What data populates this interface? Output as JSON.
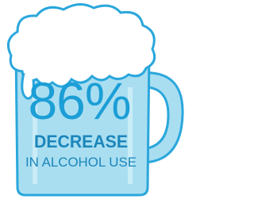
{
  "stat": {
    "value": "86%",
    "label": "DECREASE",
    "sublabel": "IN ALCOHOL USE"
  }
}
